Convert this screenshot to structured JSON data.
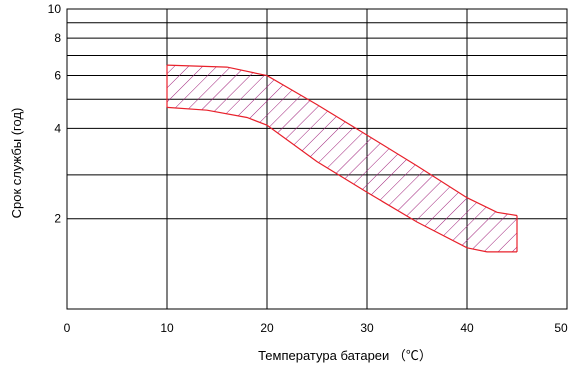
{
  "chart_data": {
    "type": "area",
    "title": "",
    "xlabel": "Температура батареи （℃）",
    "ylabel": "Срок службы (год)",
    "xlim": [
      0,
      50
    ],
    "ylim": [
      1,
      10
    ],
    "y_scale": "log",
    "grid": true,
    "x_ticks": [
      "0",
      "10",
      "20",
      "30",
      "40",
      "50"
    ],
    "y_ticks": [
      {
        "value": 2,
        "label": "2"
      },
      {
        "value": 4,
        "label": "4"
      },
      {
        "value": 6,
        "label": "6"
      },
      {
        "value": 8,
        "label": "8"
      },
      {
        "value": 10,
        "label": "10"
      }
    ],
    "grid_y_values": [
      2,
      2.8,
      4,
      5,
      6,
      7,
      8,
      9,
      10
    ],
    "band": {
      "upper": [
        [
          10,
          6.5
        ],
        [
          16,
          6.4
        ],
        [
          20,
          6.0
        ],
        [
          25,
          4.8
        ],
        [
          30,
          3.8
        ],
        [
          35,
          3.0
        ],
        [
          40,
          2.35
        ],
        [
          43,
          2.1
        ],
        [
          45,
          2.05
        ]
      ],
      "lower": [
        [
          10,
          4.7
        ],
        [
          14,
          4.6
        ],
        [
          18,
          4.35
        ],
        [
          20,
          4.1
        ],
        [
          25,
          3.1
        ],
        [
          30,
          2.45
        ],
        [
          35,
          1.95
        ],
        [
          40,
          1.6
        ],
        [
          42,
          1.55
        ],
        [
          45,
          1.55
        ]
      ]
    },
    "band_color": "#e8202a",
    "hatch_color": "#a0207a"
  }
}
